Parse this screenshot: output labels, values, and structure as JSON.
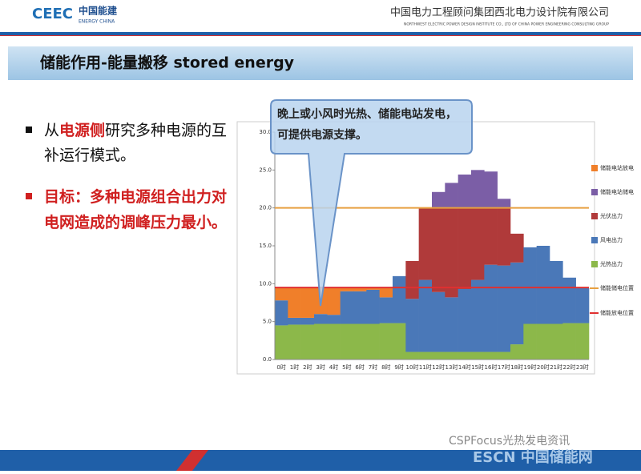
{
  "header": {
    "logo": "CEEC",
    "logo_cn": "中国能建",
    "logo_en": "ENERGY CHINA",
    "company": "中国电力工程顾问集团西北电力设计院有限公司",
    "company_en": "NORTHWEST ELECTRIC POWER DESIGN INSTITUTE CO., LTD OF CHINA POWER ENGINEERING CONSULTING GROUP"
  },
  "slide": {
    "title": "储能作用-能量搬移 stored energy",
    "bullets": [
      {
        "parts": [
          "从",
          "电源侧",
          "研究多种电源的互补运行模式。"
        ]
      },
      {
        "parts": [
          "目标：多种电源组合出力对电网造成的调峰压力最小。"
        ]
      }
    ],
    "callout": "晚上或小风时光热、储能电站发电，可提供电源支撑。"
  },
  "watermark": {
    "wechat": "CSPFocus光热发电资讯",
    "site": "ESCN 中国储能网"
  },
  "chart_data": {
    "type": "stacked-step",
    "categories": [
      "0时",
      "1时",
      "2时",
      "3时",
      "4时",
      "5时",
      "6时",
      "7时",
      "8时",
      "9时",
      "10时",
      "11时",
      "12时",
      "13时",
      "14时",
      "15时",
      "16时",
      "17时",
      "18时",
      "19时",
      "20时",
      "21时",
      "22时",
      "23时"
    ],
    "series": [
      {
        "name": "储能电站放电",
        "color": "#f07f2a",
        "values": [
          1.7,
          4.0,
          4.0,
          3.5,
          3.6,
          0.5,
          0.5,
          0.3,
          1.3,
          0,
          0,
          0,
          0,
          0,
          0,
          0,
          0,
          0,
          0,
          0,
          0,
          0,
          0,
          0
        ]
      },
      {
        "name": "储能电站储电",
        "color": "#7b5ea6",
        "values": [
          0,
          0,
          0,
          0,
          0,
          0,
          0,
          0,
          0,
          0,
          0,
          0,
          2.1,
          3.3,
          4.4,
          5.0,
          4.8,
          1.2,
          0,
          0,
          0,
          0,
          0,
          0
        ]
      },
      {
        "name": "光伏出力",
        "color": "#b03a3a",
        "values": [
          0,
          0,
          0,
          0,
          0,
          0,
          0,
          0,
          0,
          0,
          5.0,
          9.5,
          11.1,
          11.8,
          10.7,
          9.5,
          7.5,
          7.6,
          3.8,
          0,
          0,
          0,
          0,
          0
        ]
      },
      {
        "name": "风电出力",
        "color": "#4a78b8",
        "values": [
          3.3,
          0.9,
          0.9,
          1.3,
          1.2,
          4.3,
          4.3,
          4.5,
          3.4,
          6.2,
          7.0,
          9.5,
          7.9,
          7.2,
          8.3,
          9.5,
          11.5,
          11.4,
          10.8,
          10.1,
          10.3,
          8.3,
          6.0,
          4.6
        ]
      },
      {
        "name": "光热出力",
        "color": "#8cb84a",
        "values": [
          4.5,
          4.6,
          4.6,
          4.7,
          4.7,
          4.7,
          4.7,
          4.7,
          4.8,
          4.8,
          1.0,
          1.0,
          1.0,
          1.0,
          1.0,
          1.0,
          1.0,
          1.0,
          2.0,
          4.7,
          4.7,
          4.7,
          4.8,
          4.8
        ]
      }
    ],
    "lines": [
      {
        "name": "储能储电位置",
        "color": "#e8a040",
        "value": 20
      },
      {
        "name": "储能放电位置",
        "color": "#e03030",
        "value": 9.5
      }
    ],
    "ylim": [
      0,
      30
    ],
    "yticks": [
      {
        "value": 0,
        "label": "0.0"
      },
      {
        "value": 5,
        "label": "5.0"
      },
      {
        "value": 10,
        "label": "10.0"
      },
      {
        "value": 15,
        "label": "15.0"
      },
      {
        "value": 20,
        "label": "20.0"
      },
      {
        "value": 25,
        "label": "25.0"
      },
      {
        "value": 30,
        "label": "30.0"
      }
    ]
  }
}
